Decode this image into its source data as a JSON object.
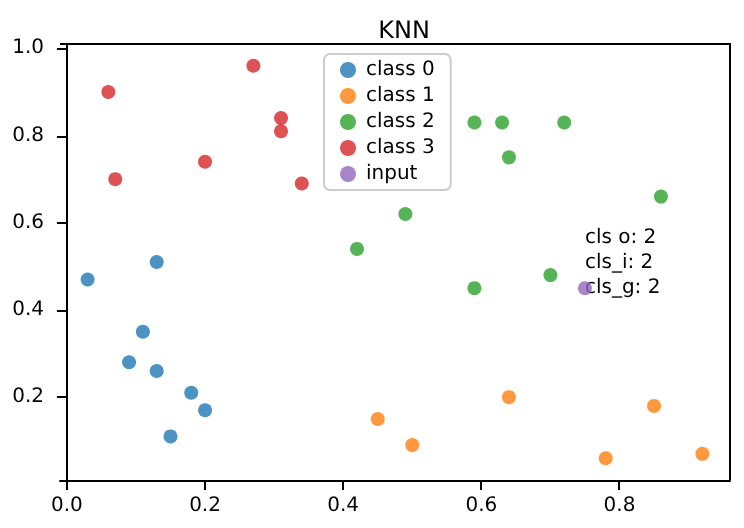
{
  "chart_data": {
    "type": "scatter",
    "title": "KNN",
    "xlim": [
      -0.01,
      0.96
    ],
    "ylim": [
      0.01,
      1.01
    ],
    "xticks": [
      {
        "value": 0,
        "label": "0.0"
      },
      {
        "value": 0.2,
        "label": "0.2"
      },
      {
        "value": 0.4,
        "label": "0.4"
      },
      {
        "value": 0.6,
        "label": "0.6"
      },
      {
        "value": 0.8,
        "label": "0.8"
      }
    ],
    "yticks": [
      {
        "value": 0.2,
        "label": "0.2"
      },
      {
        "value": 0.4,
        "label": "0.4"
      },
      {
        "value": 0.6,
        "label": "0.6"
      },
      {
        "value": 0.8,
        "label": "0.8"
      },
      {
        "value": 1,
        "label": "1.0"
      }
    ],
    "grid": false,
    "legend": "top",
    "marker": "circle",
    "series": [
      {
        "name": "class 0",
        "color": "#1f77b4",
        "x": [
          0.03,
          0.13,
          0.11,
          0.09,
          0.13,
          0.18,
          0.2,
          0.15
        ],
        "values": [
          0.47,
          0.51,
          0.35,
          0.28,
          0.26,
          0.21,
          0.17,
          0.11
        ]
      },
      {
        "name": "class 1",
        "color": "#ff7f0e",
        "x": [
          0.45,
          0.5,
          0.64,
          0.85,
          0.78,
          0.92
        ],
        "values": [
          0.15,
          0.09,
          0.2,
          0.18,
          0.06,
          0.07
        ]
      },
      {
        "name": "class 2",
        "color": "#2ca02c",
        "x": [
          0.42,
          0.49,
          0.59,
          0.63,
          0.72,
          0.64,
          0.86,
          0.59,
          0.7
        ],
        "values": [
          0.54,
          0.62,
          0.83,
          0.83,
          0.83,
          0.75,
          0.66,
          0.45,
          0.48
        ]
      },
      {
        "name": "class 3",
        "color": "#d62728",
        "x": [
          0.06,
          0.07,
          0.2,
          0.27,
          0.31,
          0.31,
          0.34
        ],
        "values": [
          0.9,
          0.7,
          0.74,
          0.96,
          0.84,
          0.81,
          0.69
        ]
      },
      {
        "name": "input",
        "color": "#9467bd",
        "x": [
          0.75
        ],
        "values": [
          0.45
        ]
      }
    ],
    "annotations": [
      {
        "text": "cls o: 2\ncls_i: 2\ncls_g: 2",
        "x": 0.75,
        "y": 0.45
      }
    ]
  }
}
